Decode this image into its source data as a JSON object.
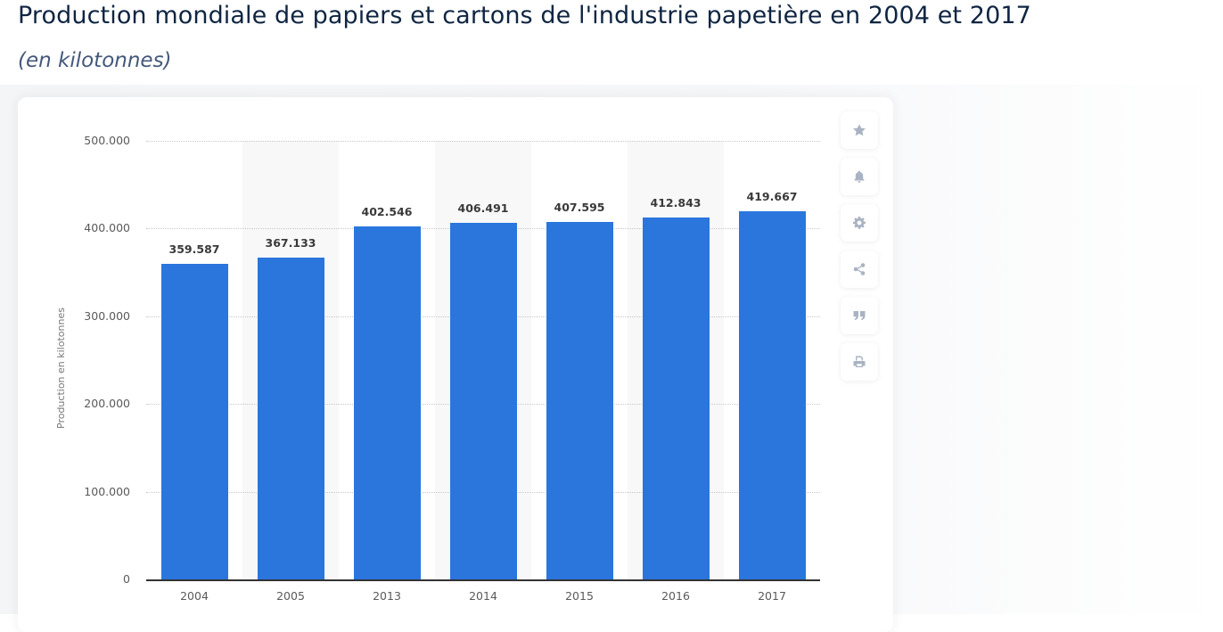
{
  "header": {
    "title": "Production mondiale de papiers et cartons de l'industrie papetière en 2004 et 2017",
    "subtitle": "(en kilotonnes)"
  },
  "toolbar": {
    "items": [
      {
        "name": "favorite",
        "icon": "star-icon"
      },
      {
        "name": "notification",
        "icon": "bell-icon"
      },
      {
        "name": "settings",
        "icon": "gear-icon"
      },
      {
        "name": "share",
        "icon": "share-icon"
      },
      {
        "name": "cite",
        "icon": "quote-icon"
      },
      {
        "name": "print",
        "icon": "print-icon"
      }
    ]
  },
  "colors": {
    "bar": "#2a76dd",
    "title": "#0f2542",
    "subtitle": "#44587a",
    "icon": "#a9b3c3"
  },
  "chart_data": {
    "type": "bar",
    "title": "Production mondiale de papiers et cartons de l'industrie papetière en 2004 et 2017",
    "subtitle": "(en kilotonnes)",
    "xlabel": "",
    "ylabel": "Production en kilotonnes",
    "categories": [
      "2004",
      "2005",
      "2013",
      "2014",
      "2015",
      "2016",
      "2017"
    ],
    "values": [
      359587,
      367133,
      402546,
      406491,
      407595,
      412843,
      419667
    ],
    "value_labels": [
      "359.587",
      "367.133",
      "402.546",
      "406.491",
      "407.595",
      "412.843",
      "419.667"
    ],
    "ylim": [
      0,
      500000
    ],
    "yticks": [
      0,
      100000,
      200000,
      300000,
      400000,
      500000
    ],
    "ytick_labels": [
      "0",
      "100.000",
      "200.000",
      "300.000",
      "400.000",
      "500.000"
    ],
    "grid": true,
    "legend": null
  }
}
